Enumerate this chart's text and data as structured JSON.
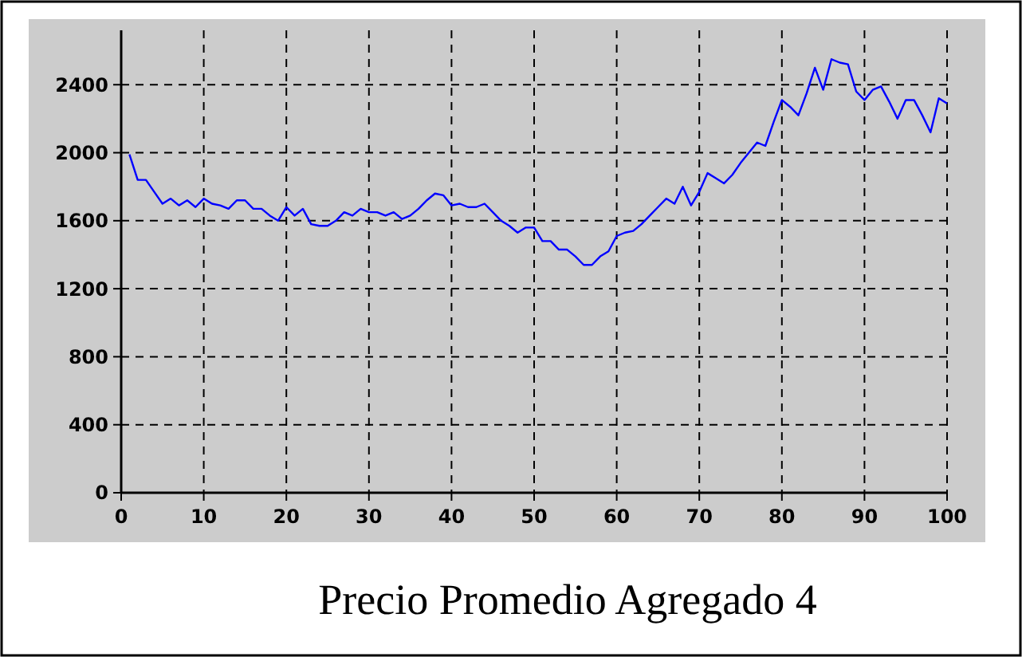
{
  "chart_data": {
    "type": "line",
    "title": "Precio Promedio Agregado 4",
    "x": [
      1,
      2,
      3,
      4,
      5,
      6,
      7,
      8,
      9,
      10,
      11,
      12,
      13,
      14,
      15,
      16,
      17,
      18,
      19,
      20,
      21,
      22,
      23,
      24,
      25,
      26,
      27,
      28,
      29,
      30,
      31,
      32,
      33,
      34,
      35,
      36,
      37,
      38,
      39,
      40,
      41,
      42,
      43,
      44,
      45,
      46,
      47,
      48,
      49,
      50,
      51,
      52,
      53,
      54,
      55,
      56,
      57,
      58,
      59,
      60,
      61,
      62,
      63,
      64,
      65,
      66,
      67,
      68,
      69,
      70,
      71,
      72,
      73,
      74,
      75,
      76,
      77,
      78,
      79,
      80,
      81,
      82,
      83,
      84,
      85,
      86,
      87,
      88,
      89,
      90,
      91,
      92,
      93,
      94,
      95,
      96,
      97,
      98,
      99,
      100
    ],
    "series": [
      {
        "color": "#0000ff",
        "values": [
          1990,
          1840,
          1840,
          1770,
          1700,
          1730,
          1690,
          1720,
          1680,
          1730,
          1700,
          1690,
          1670,
          1720,
          1720,
          1670,
          1670,
          1630,
          1600,
          1680,
          1630,
          1670,
          1580,
          1570,
          1570,
          1600,
          1650,
          1630,
          1670,
          1650,
          1650,
          1630,
          1650,
          1610,
          1630,
          1670,
          1720,
          1760,
          1750,
          1690,
          1700,
          1680,
          1680,
          1700,
          1650,
          1600,
          1570,
          1530,
          1560,
          1560,
          1480,
          1480,
          1430,
          1430,
          1390,
          1340,
          1340,
          1390,
          1420,
          1510,
          1530,
          1540,
          1580,
          1630,
          1680,
          1730,
          1700,
          1800,
          1690,
          1770,
          1880,
          1850,
          1820,
          1870,
          1940,
          2000,
          2060,
          2040,
          2180,
          2310,
          2270,
          2220,
          2350,
          2500,
          2370,
          2550,
          2530,
          2520,
          2360,
          2310,
          2370,
          2390,
          2300,
          2200,
          2310,
          2310,
          2220,
          2120,
          2320,
          2290
        ]
      }
    ],
    "xlim": [
      0,
      100
    ],
    "xticks": [
      0,
      10,
      20,
      30,
      40,
      50,
      60,
      70,
      80,
      90,
      100
    ],
    "ylim": [
      0,
      2720
    ],
    "yticks": [
      0,
      400,
      800,
      1200,
      1600,
      2000,
      2400
    ],
    "grid": true
  }
}
